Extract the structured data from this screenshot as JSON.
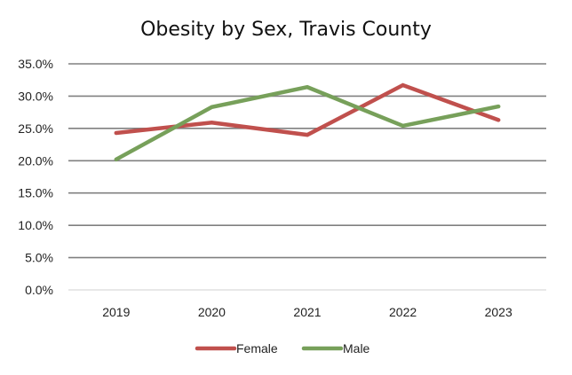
{
  "chart_data": {
    "type": "line",
    "title": "Obesity by Sex, Travis County",
    "xlabel": "",
    "ylabel": "",
    "categories": [
      "2019",
      "2020",
      "2021",
      "2022",
      "2023"
    ],
    "series": [
      {
        "name": "Female",
        "color": "#c0504d",
        "values": [
          24.3,
          25.9,
          24.0,
          31.7,
          26.3
        ]
      },
      {
        "name": "Male",
        "color": "#77a05a",
        "values": [
          20.2,
          28.3,
          31.4,
          25.4,
          28.4
        ]
      }
    ],
    "ylim": [
      0,
      35
    ],
    "yticks": [
      0,
      5,
      10,
      15,
      20,
      25,
      30,
      35
    ],
    "ytick_labels": [
      "0.0%",
      "5.0%",
      "10.0%",
      "15.0%",
      "20.0%",
      "25.0%",
      "30.0%",
      "35.0%"
    ],
    "grid": true,
    "legend_position": "bottom"
  }
}
